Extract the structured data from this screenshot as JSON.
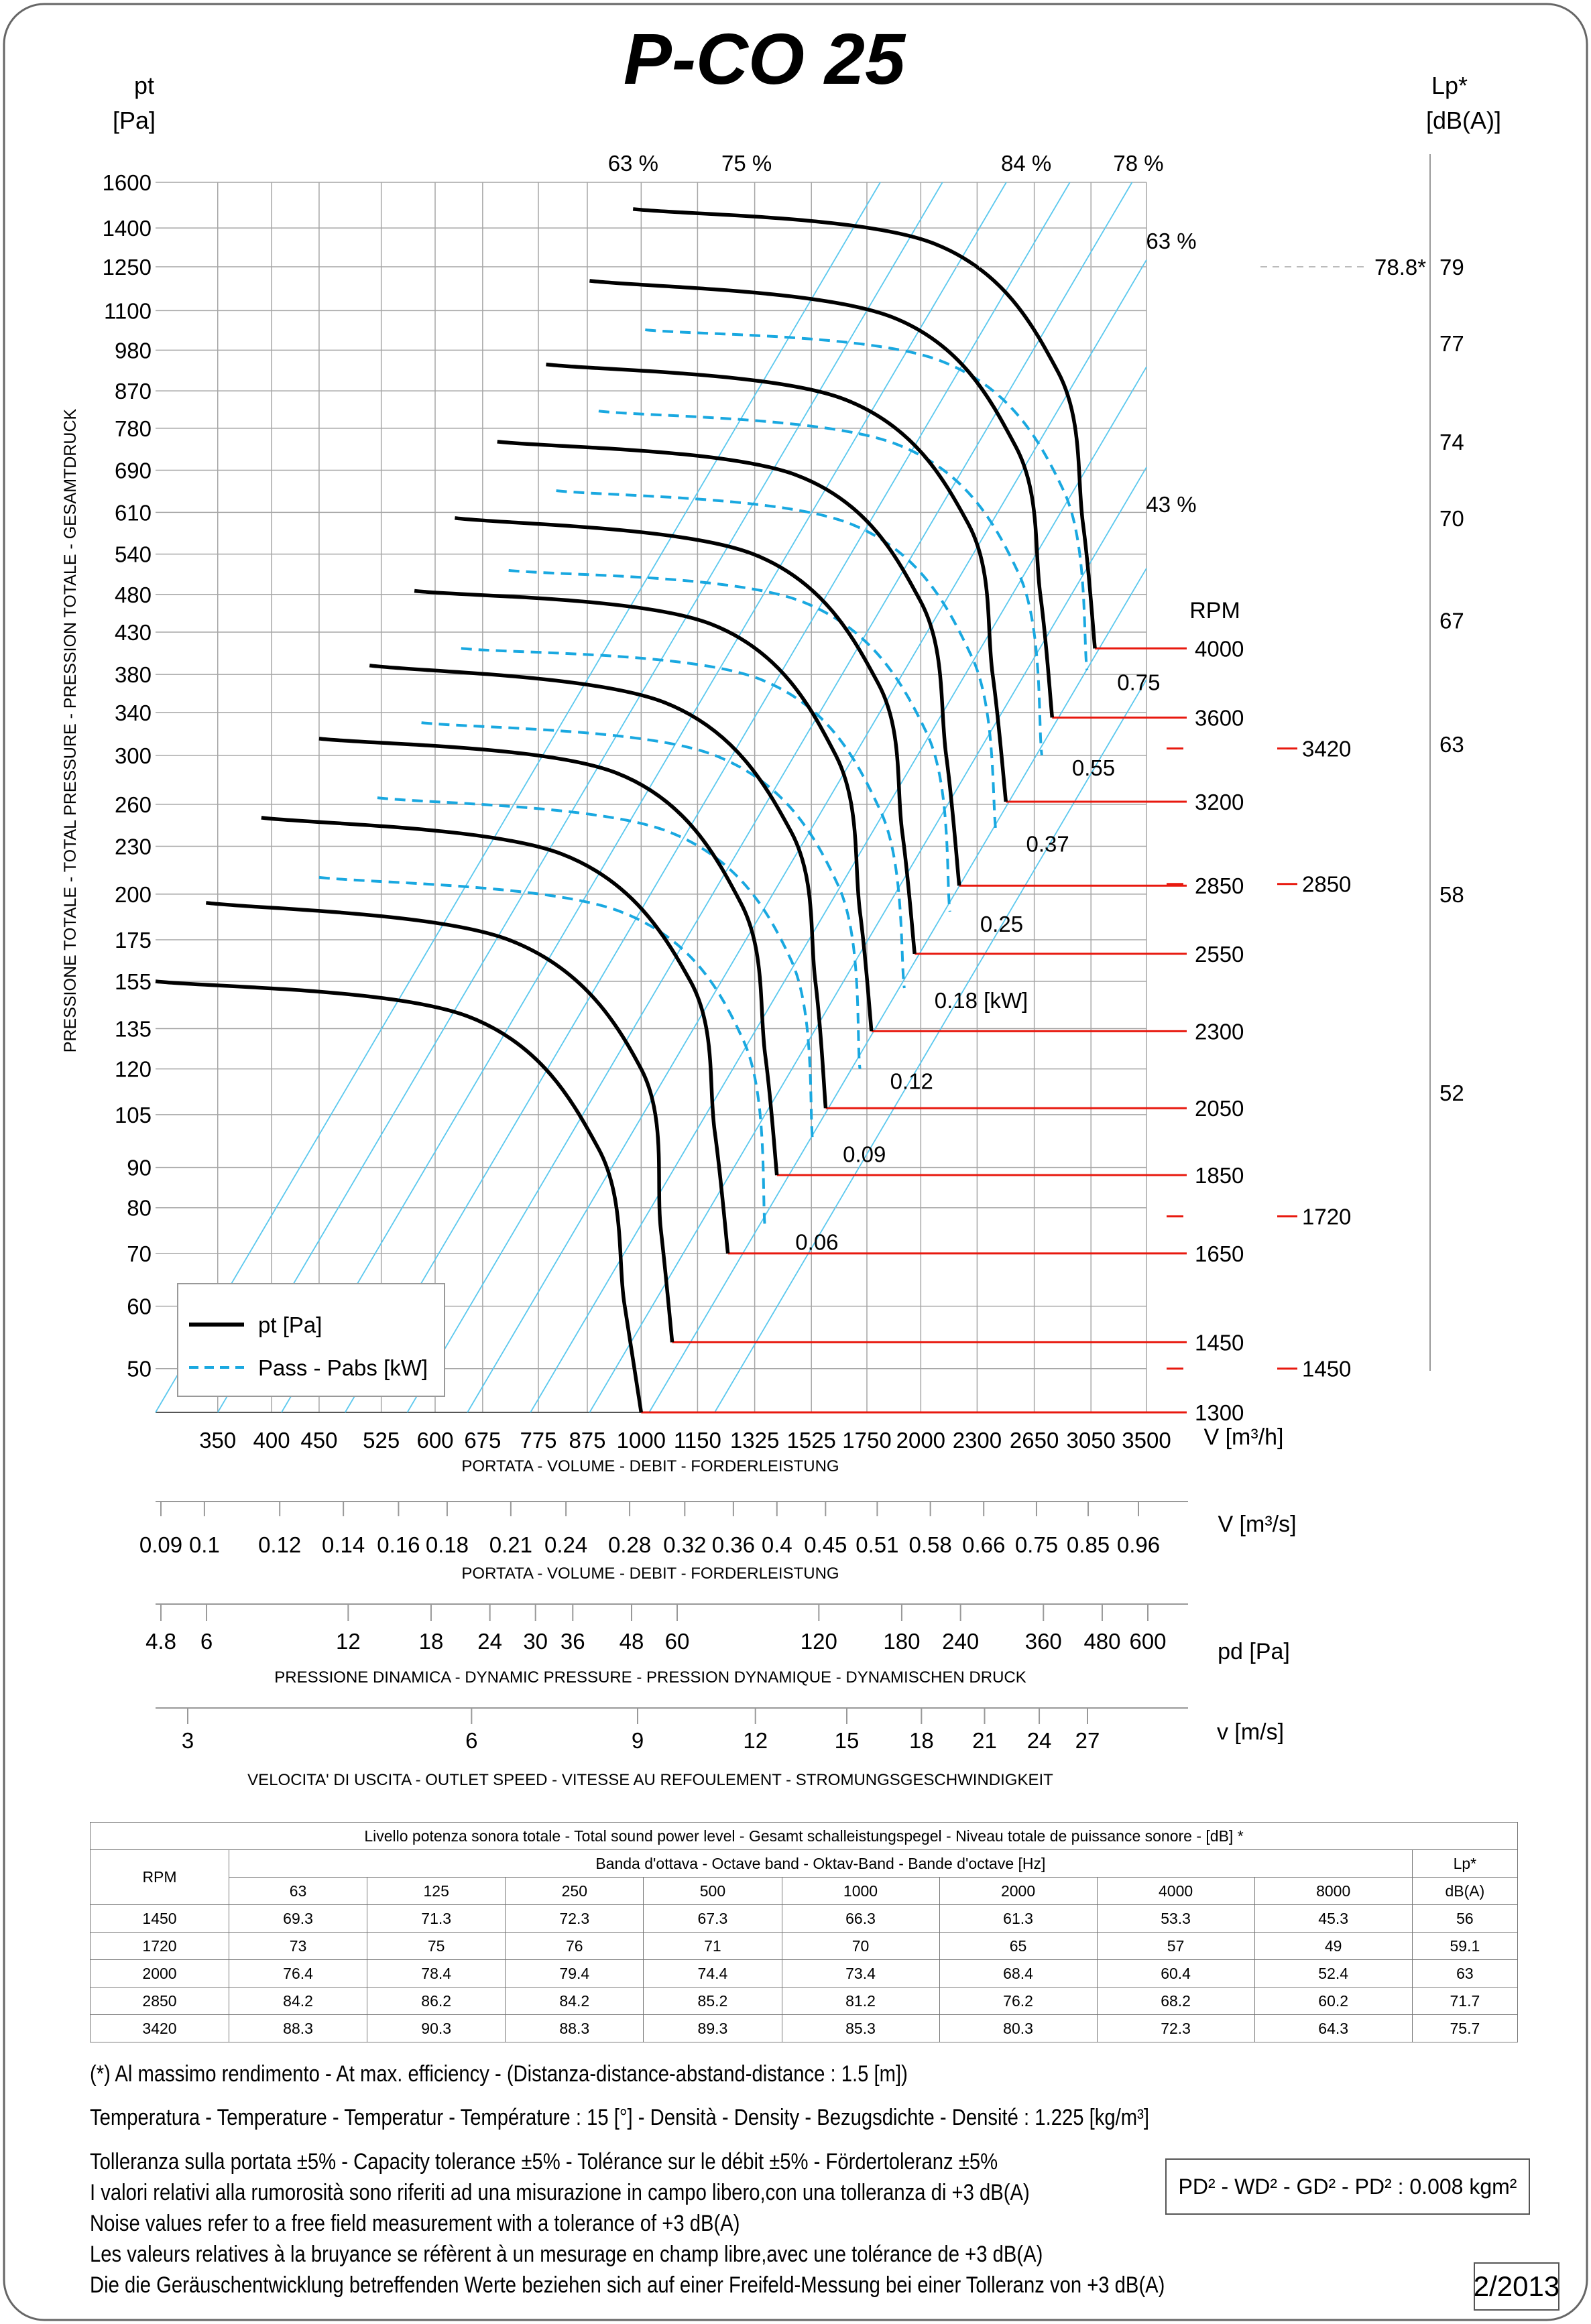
{
  "title": "P-CO 25",
  "axes": {
    "y_unit_line1": "pt",
    "y_unit_line2": "[Pa]",
    "y_label": "PRESSIONE TOTALE - TOTAL PRESSURE - PRESSION TOTALE - GESAMTDRUCK",
    "lp_unit_line1": "Lp*",
    "lp_unit_line2": "[dB(A)]",
    "x_unit": "V [m³/h]",
    "x_label": "PORTATA - VOLUME - DEBIT - FORDERLEISTUNG",
    "m3s_unit": "V  [m³/s]",
    "m3s_label": "PORTATA - VOLUME - DEBIT - FORDERLEISTUNG",
    "pd_unit": "pd  [Pa]",
    "pd_label": "PRESSIONE DINAMICA - DYNAMIC PRESSURE - PRESSION DYNAMIQUE - DYNAMISCHEN DRUCK",
    "v_unit": "v  [m/s]",
    "v_label": "VELOCITA' DI USCITA - OUTLET SPEED - VITESSE AU REFOULEMENT - STROMUNGSGESCHWINDIGKEIT"
  },
  "chart_data": {
    "type": "line",
    "title": "P-CO 25",
    "x_scale": "log",
    "y_scale": "log",
    "xlim": [
      300,
      3500
    ],
    "ylim": [
      44,
      1600
    ],
    "y_ticks": [
      50,
      60,
      70,
      80,
      90,
      105,
      120,
      135,
      155,
      175,
      200,
      230,
      260,
      300,
      340,
      380,
      430,
      480,
      540,
      610,
      690,
      780,
      870,
      980,
      1100,
      1250,
      1400,
      1600
    ],
    "x_ticks": [
      350,
      400,
      450,
      525,
      600,
      675,
      775,
      875,
      1000,
      1150,
      1325,
      1525,
      1750,
      2000,
      2300,
      2650,
      3050,
      3500
    ],
    "lp_ticks": [
      {
        "label": "52",
        "pt": 112
      },
      {
        "label": "58",
        "pt": 200
      },
      {
        "label": "63",
        "pt": 310
      },
      {
        "label": "67",
        "pt": 445
      },
      {
        "label": "70",
        "pt": 600
      },
      {
        "label": "74",
        "pt": 750
      },
      {
        "label": "77",
        "pt": 1000
      },
      {
        "label": "79",
        "pt": 1250
      }
    ],
    "lp_rpm_marks": [
      {
        "label": "1450",
        "pt": 50
      },
      {
        "label": "1720",
        "pt": 78
      },
      {
        "label": "2850",
        "pt": 206
      },
      {
        "label": "3420",
        "pt": 306
      }
    ],
    "efficiency_lines": [
      {
        "label": "63 %",
        "V": 1000
      },
      {
        "label": "75 %",
        "V": 1325
      },
      {
        "label": "84 %",
        "V": 2650
      },
      {
        "label": "78 %",
        "V": 3500
      }
    ],
    "efficiency_right_labels": [
      {
        "label": "63 %",
        "pt": 1350
      },
      {
        "label": "43 %",
        "pt": 625
      }
    ],
    "max_point": {
      "label": "78.8*",
      "pt": 1250
    },
    "legend": [
      {
        "label": "pt [Pa]",
        "style": "solid"
      },
      {
        "label": "Pass - Pabs [kW]",
        "style": "dashed"
      }
    ],
    "series": [
      {
        "rpm": "1300",
        "V": [
          300,
          650,
          900,
          960,
          1000
        ],
        "pt": [
          155,
          140,
          95,
          60,
          44
        ]
      },
      {
        "rpm": "1450",
        "V": [
          340,
          720,
          1000,
          1050,
          1080
        ],
        "pt": [
          195,
          175,
          120,
          75,
          54
        ]
      },
      {
        "rpm": "1650",
        "V": [
          390,
          820,
          1130,
          1200,
          1240
        ],
        "pt": [
          250,
          225,
          155,
          100,
          70
        ]
      },
      {
        "rpm": "1850",
        "V": [
          450,
          940,
          1280,
          1360,
          1400
        ],
        "pt": [
          315,
          285,
          195,
          125,
          88
        ]
      },
      {
        "rpm": "2050",
        "V": [
          510,
          1060,
          1450,
          1540,
          1580
        ],
        "pt": [
          390,
          350,
          240,
          155,
          107
        ]
      },
      {
        "rpm": "2300",
        "V": [
          570,
          1190,
          1620,
          1720,
          1770
        ],
        "pt": [
          485,
          440,
          300,
          190,
          134
        ]
      },
      {
        "rpm": "2550",
        "V": [
          630,
          1320,
          1800,
          1910,
          1970
        ],
        "pt": [
          600,
          540,
          370,
          240,
          168
        ]
      },
      {
        "rpm": "2850",
        "V": [
          700,
          1470,
          2000,
          2130,
          2200
        ],
        "pt": [
          750,
          680,
          470,
          300,
          205
        ]
      },
      {
        "rpm": "3200",
        "V": [
          790,
          1650,
          2250,
          2390,
          2470
        ],
        "pt": [
          940,
          850,
          590,
          380,
          262
        ]
      },
      {
        "rpm": "3600",
        "V": [
          880,
          1860,
          2530,
          2690,
          2770
        ],
        "pt": [
          1200,
          1080,
          740,
          480,
          335
        ]
      },
      {
        "rpm": "4000",
        "V": [
          980,
          2060,
          2810,
          2990,
          3080
        ],
        "pt": [
          1480,
          1340,
          920,
          590,
          410
        ]
      }
    ],
    "power_curves": [
      {
        "label": "0.06",
        "V": [
          450,
          950,
          1290,
          1360
        ],
        "pt": [
          210,
          190,
          130,
          75
        ]
      },
      {
        "label": "0.09",
        "V": [
          520,
          1070,
          1450,
          1530
        ],
        "pt": [
          265,
          240,
          165,
          97
        ]
      },
      {
        "label": "0.12",
        "V": [
          580,
          1200,
          1630,
          1720
        ],
        "pt": [
          330,
          300,
          205,
          120
        ]
      },
      {
        "label": "0.18  [kW]",
        "V": [
          640,
          1340,
          1810,
          1920
        ],
        "pt": [
          410,
          375,
          255,
          152
        ]
      },
      {
        "label": "0.25",
        "V": [
          720,
          1490,
          2030,
          2150
        ],
        "pt": [
          515,
          470,
          320,
          190
        ]
      },
      {
        "label": "0.37",
        "V": [
          810,
          1680,
          2270,
          2410
        ],
        "pt": [
          650,
          590,
          400,
          240
        ]
      },
      {
        "label": "0.55",
        "V": [
          900,
          1880,
          2550,
          2700
        ],
        "pt": [
          820,
          745,
          510,
          300
        ]
      },
      {
        "label": "0.75",
        "V": [
          1010,
          2100,
          2850,
          3020
        ],
        "pt": [
          1040,
          950,
          650,
          385
        ]
      }
    ]
  },
  "scales": {
    "m3s": [
      "0.09",
      "0.1",
      "0.12",
      "0.14",
      "0.16",
      "0.18",
      "0.21",
      "0.24",
      "0.28",
      "0.32",
      "0.36",
      "0.4",
      "0.45",
      "0.51",
      "0.58",
      "0.66",
      "0.75",
      "0.85",
      "0.96"
    ],
    "m3s_values": [
      0.09,
      0.1,
      0.12,
      0.14,
      0.16,
      0.18,
      0.21,
      0.24,
      0.28,
      0.32,
      0.36,
      0.4,
      0.45,
      0.51,
      0.58,
      0.66,
      0.75,
      0.85,
      0.96
    ],
    "pd": [
      "4.8",
      "6",
      "12",
      "18",
      "24",
      "30",
      "36",
      "48",
      "60",
      "120",
      "180",
      "240",
      "360",
      "480",
      "600"
    ],
    "pd_values": [
      4.8,
      6,
      12,
      18,
      24,
      30,
      36,
      48,
      60,
      120,
      180,
      240,
      360,
      480,
      600
    ],
    "v": [
      "3",
      "6",
      "9",
      "12",
      "15",
      "18",
      "21",
      "24",
      "27"
    ],
    "v_values": [
      3,
      6,
      9,
      12,
      15,
      18,
      21,
      24,
      27
    ]
  },
  "rpm_header": "RPM",
  "noise_table": {
    "title": "Livello potenza sonora totale - Total sound power level - Gesamt schalleistungspegel - Niveau totale de puissance sonore - [dB]   *",
    "band_header": "Banda d'ottava - Octave band - Oktav-Band - Bande d'octave [Hz]",
    "rpm_header": "RPM",
    "lp_header_1": "Lp*",
    "lp_header_2": "dB(A)",
    "bands": [
      "63",
      "125",
      "250",
      "500",
      "1000",
      "2000",
      "4000",
      "8000"
    ],
    "rows": [
      {
        "rpm": "1450",
        "values": [
          "69.3",
          "71.3",
          "72.3",
          "67.3",
          "66.3",
          "61.3",
          "53.3",
          "45.3"
        ],
        "lp": "56"
      },
      {
        "rpm": "1720",
        "values": [
          "73",
          "75",
          "76",
          "71",
          "70",
          "65",
          "57",
          "49"
        ],
        "lp": "59.1"
      },
      {
        "rpm": "2000",
        "values": [
          "76.4",
          "78.4",
          "79.4",
          "74.4",
          "73.4",
          "68.4",
          "60.4",
          "52.4"
        ],
        "lp": "63"
      },
      {
        "rpm": "2850",
        "values": [
          "84.2",
          "86.2",
          "84.2",
          "85.2",
          "81.2",
          "76.2",
          "68.2",
          "60.2"
        ],
        "lp": "71.7"
      },
      {
        "rpm": "3420",
        "values": [
          "88.3",
          "90.3",
          "88.3",
          "89.3",
          "85.3",
          "80.3",
          "72.3",
          "64.3"
        ],
        "lp": "75.7"
      }
    ]
  },
  "notes": {
    "line1": "(*) Al massimo rendimento - At max. efficiency - (Distanza-distance-abstand-distance : 1.5 [m])",
    "line2": "Temperatura - Temperature - Temperatur - Température : 15 [°]  -  Densità - Density - Bezugsdichte - Densité : 1.225 [kg/m³]",
    "line3": "Tolleranza sulla portata  ±5% - Capacity tolerance ±5% - Tolérance sur le débit ±5% - Fördertoleranz ±5%",
    "line4": "I valori relativi alla rumorosità sono riferiti ad una misurazione in campo libero,con una tolleranza di +3 dB(A)",
    "line5": "Noise values refer to a free field measurement with a tolerance of +3 dB(A)",
    "line6": "Les valeurs relatives à la bruyance se réfèrent à un mesurage en champ libre,avec une tolérance de +3 dB(A)",
    "line7": "Die die Geräuschentwicklung betreffenden Werte beziehen sich auf einer Freifeld-Messung bei einer Tolleranz von +3 dB(A)"
  },
  "inertia": "PD² -  WD² - GD² -  PD²  :  0.008 kgm²",
  "revision": "2/2013",
  "colors": {
    "rpm_lines": "#e8190f",
    "grid": "#a6a6a6",
    "iso_lines": "#5bc8ee",
    "power_curves": "#19a8e0",
    "curves": "#000000"
  }
}
